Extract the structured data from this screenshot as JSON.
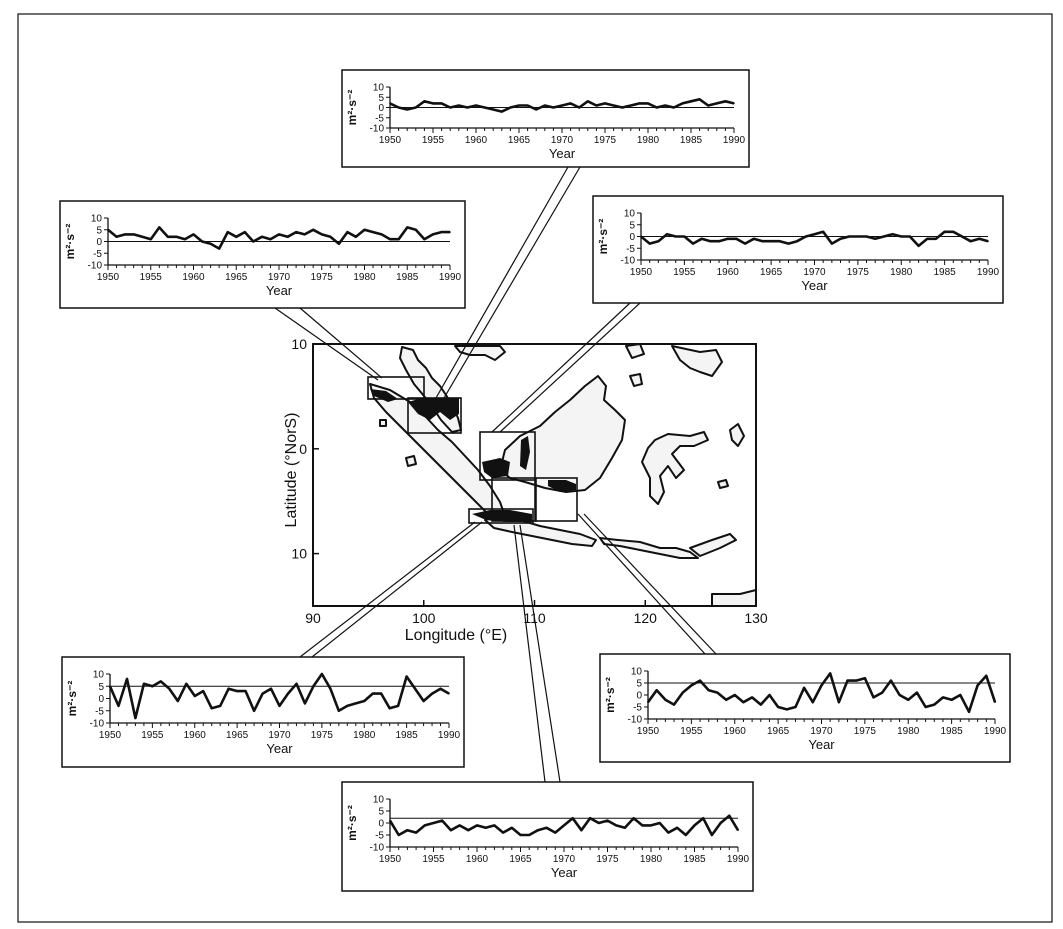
{
  "colors": {
    "ink": "#111111",
    "paper": "#ffffff",
    "land": "#f4f4f4",
    "shade": "#111111"
  },
  "chart_data": [
    {
      "type": "line",
      "panel": "top-center",
      "x": [
        1950,
        1951,
        1952,
        1953,
        1954,
        1955,
        1956,
        1957,
        1958,
        1959,
        1960,
        1961,
        1962,
        1963,
        1964,
        1965,
        1966,
        1967,
        1968,
        1969,
        1970,
        1971,
        1972,
        1973,
        1974,
        1975,
        1976,
        1977,
        1978,
        1979,
        1980,
        1981,
        1982,
        1983,
        1984,
        1985,
        1986,
        1987,
        1988,
        1989,
        1990
      ],
      "y": [
        2,
        0,
        -1,
        0,
        3,
        2,
        2,
        0,
        1,
        0,
        1,
        0,
        -1,
        -2,
        0,
        1,
        1,
        -1,
        1,
        0,
        1,
        2,
        0,
        3,
        1,
        2,
        1,
        0,
        1,
        2,
        2,
        0,
        1,
        0,
        2,
        3,
        4,
        1,
        2,
        3,
        2
      ],
      "reference": 0,
      "ylim": [
        -10,
        10
      ],
      "yticks": [
        "10",
        "5",
        "0",
        "-5",
        "-10"
      ],
      "xticks": [
        "1950",
        "1955",
        "1960",
        "1965",
        "1970",
        "1975",
        "1980",
        "1985",
        "1990"
      ],
      "ylabel": "m²·s⁻²",
      "xlabel": "Year"
    },
    {
      "type": "line",
      "panel": "top-left",
      "x": [
        1950,
        1951,
        1952,
        1953,
        1954,
        1955,
        1956,
        1957,
        1958,
        1959,
        1960,
        1961,
        1962,
        1963,
        1964,
        1965,
        1966,
        1967,
        1968,
        1969,
        1970,
        1971,
        1972,
        1973,
        1974,
        1975,
        1976,
        1977,
        1978,
        1979,
        1980,
        1981,
        1982,
        1983,
        1984,
        1985,
        1986,
        1987,
        1988,
        1989,
        1990
      ],
      "y": [
        5,
        2,
        3,
        3,
        2,
        1,
        6,
        2,
        2,
        1,
        3,
        0,
        -1,
        -3,
        4,
        2,
        4,
        0,
        2,
        1,
        3,
        2,
        4,
        3,
        5,
        3,
        2,
        -1,
        4,
        2,
        5,
        4,
        3,
        1,
        1,
        6,
        5,
        1,
        3,
        4,
        4
      ],
      "reference": 0,
      "ylim": [
        -10,
        10
      ],
      "yticks": [
        "10",
        "5",
        "0",
        "-5",
        "-10"
      ],
      "xticks": [
        "1950",
        "1955",
        "1960",
        "1965",
        "1970",
        "1975",
        "1980",
        "1985",
        "1990"
      ],
      "ylabel": "m²·s⁻²",
      "xlabel": "Year"
    },
    {
      "type": "line",
      "panel": "top-right",
      "x": [
        1950,
        1951,
        1952,
        1953,
        1954,
        1955,
        1956,
        1957,
        1958,
        1959,
        1960,
        1961,
        1962,
        1963,
        1964,
        1965,
        1966,
        1967,
        1968,
        1969,
        1970,
        1971,
        1972,
        1973,
        1974,
        1975,
        1976,
        1977,
        1978,
        1979,
        1980,
        1981,
        1982,
        1983,
        1984,
        1985,
        1986,
        1987,
        1988,
        1989,
        1990
      ],
      "y": [
        0,
        -3,
        -2,
        1,
        0,
        0,
        -3,
        -1,
        -2,
        -2,
        -1,
        -1,
        -3,
        -1,
        -2,
        -2,
        -2,
        -3,
        -2,
        0,
        1,
        2,
        -3,
        -1,
        0,
        0,
        0,
        -1,
        0,
        1,
        0,
        0,
        -4,
        -1,
        -1,
        2,
        2,
        0,
        -2,
        -1,
        -2
      ],
      "reference": 0,
      "ylim": [
        -10,
        10
      ],
      "yticks": [
        "10",
        "5",
        "0",
        "-5",
        "-10"
      ],
      "xticks": [
        "1950",
        "1955",
        "1960",
        "1965",
        "1970",
        "1975",
        "1980",
        "1985",
        "1990"
      ],
      "ylabel": "m²·s⁻²",
      "xlabel": "Year"
    },
    {
      "type": "line",
      "panel": "bottom-left",
      "x": [
        1950,
        1951,
        1952,
        1953,
        1954,
        1955,
        1956,
        1957,
        1958,
        1959,
        1960,
        1961,
        1962,
        1963,
        1964,
        1965,
        1966,
        1967,
        1968,
        1969,
        1970,
        1971,
        1972,
        1973,
        1974,
        1975,
        1976,
        1977,
        1978,
        1979,
        1980,
        1981,
        1982,
        1983,
        1984,
        1985,
        1986,
        1987,
        1988,
        1989,
        1990
      ],
      "y": [
        5,
        -3,
        8,
        -8,
        6,
        5,
        7,
        4,
        -1,
        6,
        1,
        3,
        -4,
        -3,
        4,
        3,
        3,
        -5,
        2,
        4,
        -3,
        2,
        6,
        -2,
        5,
        10,
        4,
        -5,
        -3,
        -2,
        -1,
        2,
        2,
        -4,
        -3,
        9,
        4,
        -1,
        2,
        4,
        2
      ],
      "reference": 5,
      "ylim": [
        -10,
        10
      ],
      "yticks": [
        "10",
        "5",
        "0",
        "-5",
        "-10"
      ],
      "xticks": [
        "1950",
        "1955",
        "1960",
        "1965",
        "1970",
        "1975",
        "1980",
        "1985",
        "1990"
      ],
      "ylabel": "m²·s⁻²",
      "xlabel": "Year"
    },
    {
      "type": "line",
      "panel": "bottom-right",
      "x": [
        1950,
        1951,
        1952,
        1953,
        1954,
        1955,
        1956,
        1957,
        1958,
        1959,
        1960,
        1961,
        1962,
        1963,
        1964,
        1965,
        1966,
        1967,
        1968,
        1969,
        1970,
        1971,
        1972,
        1973,
        1974,
        1975,
        1976,
        1977,
        1978,
        1979,
        1980,
        1981,
        1982,
        1983,
        1984,
        1985,
        1986,
        1987,
        1988,
        1989,
        1990
      ],
      "y": [
        -3,
        2,
        -2,
        -4,
        1,
        4,
        6,
        2,
        1,
        -2,
        0,
        -3,
        -1,
        -4,
        0,
        -5,
        -6,
        -5,
        3,
        -3,
        4,
        9,
        -3,
        6,
        6,
        7,
        -1,
        1,
        6,
        0,
        -2,
        1,
        -5,
        -4,
        -1,
        -2,
        0,
        -7,
        4,
        8,
        -3
      ],
      "reference": 5,
      "ylim": [
        -10,
        10
      ],
      "yticks": [
        "10",
        "5",
        "0",
        "-5",
        "-10"
      ],
      "xticks": [
        "1950",
        "1955",
        "1960",
        "1965",
        "1970",
        "1975",
        "1980",
        "1985",
        "1990"
      ],
      "ylabel": "m²·s⁻²",
      "xlabel": "Year"
    },
    {
      "type": "line",
      "panel": "bottom-center",
      "x": [
        1950,
        1951,
        1952,
        1953,
        1954,
        1955,
        1956,
        1957,
        1958,
        1959,
        1960,
        1961,
        1962,
        1963,
        1964,
        1965,
        1966,
        1967,
        1968,
        1969,
        1970,
        1971,
        1972,
        1973,
        1974,
        1975,
        1976,
        1977,
        1978,
        1979,
        1980,
        1981,
        1982,
        1983,
        1984,
        1985,
        1986,
        1987,
        1988,
        1989,
        1990
      ],
      "y": [
        1,
        -5,
        -3,
        -4,
        -1,
        0,
        1,
        -3,
        -1,
        -3,
        -1,
        -2,
        -1,
        -4,
        -2,
        -5,
        -5,
        -3,
        -2,
        -4,
        -1,
        2,
        -3,
        2,
        0,
        1,
        -1,
        -2,
        2,
        -1,
        -1,
        0,
        -4,
        -2,
        -5,
        -1,
        2,
        -5,
        0,
        3,
        -3
      ],
      "reference": 2,
      "ylim": [
        -10,
        10
      ],
      "yticks": [
        "10",
        "5",
        "0",
        "-5",
        "-10"
      ],
      "xticks": [
        "1950",
        "1955",
        "1960",
        "1965",
        "1970",
        "1975",
        "1980",
        "1985",
        "1990"
      ],
      "ylabel": "m²·s⁻²",
      "xlabel": "Year"
    }
  ],
  "map": {
    "xlabel": "Longitude (°E)",
    "ylabel": "Latitude (°NorS)",
    "xlim": [
      90,
      130
    ],
    "ylim": [
      10,
      -15
    ],
    "xticks": [
      90,
      100,
      110,
      120,
      130
    ],
    "yticks": [
      {
        "value": 10,
        "label": "10"
      },
      {
        "value": 0,
        "label": "0"
      },
      {
        "value": -10,
        "label": "10"
      }
    ]
  }
}
